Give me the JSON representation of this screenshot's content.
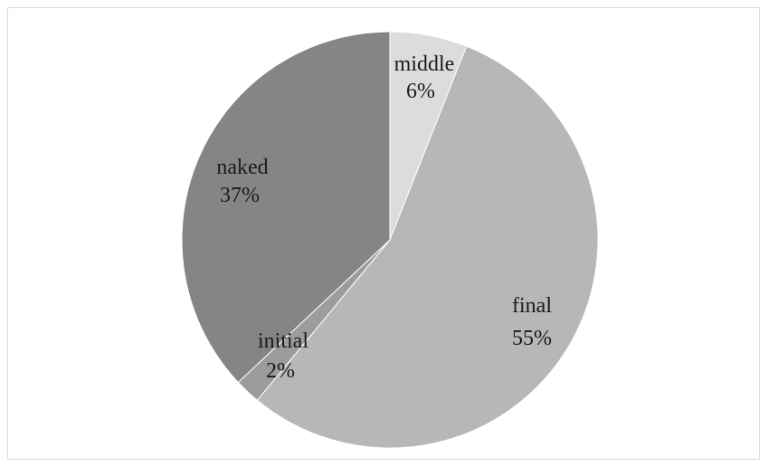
{
  "chart_data": {
    "type": "pie",
    "title": "",
    "start_angle_deg": 0,
    "direction": "clockwise",
    "slices": [
      {
        "label": "middle",
        "value": 6,
        "value_label": "6%",
        "color": "#dcdcdc"
      },
      {
        "label": "final",
        "value": 55,
        "value_label": "55%",
        "color": "#b7b7b7"
      },
      {
        "label": "initial",
        "value": 2,
        "value_label": "2%",
        "color": "#9c9c9c"
      },
      {
        "label": "naked",
        "value": 37,
        "value_label": "37%",
        "color": "#858585"
      }
    ],
    "legend": "none",
    "data_labels": "category-and-percent"
  }
}
